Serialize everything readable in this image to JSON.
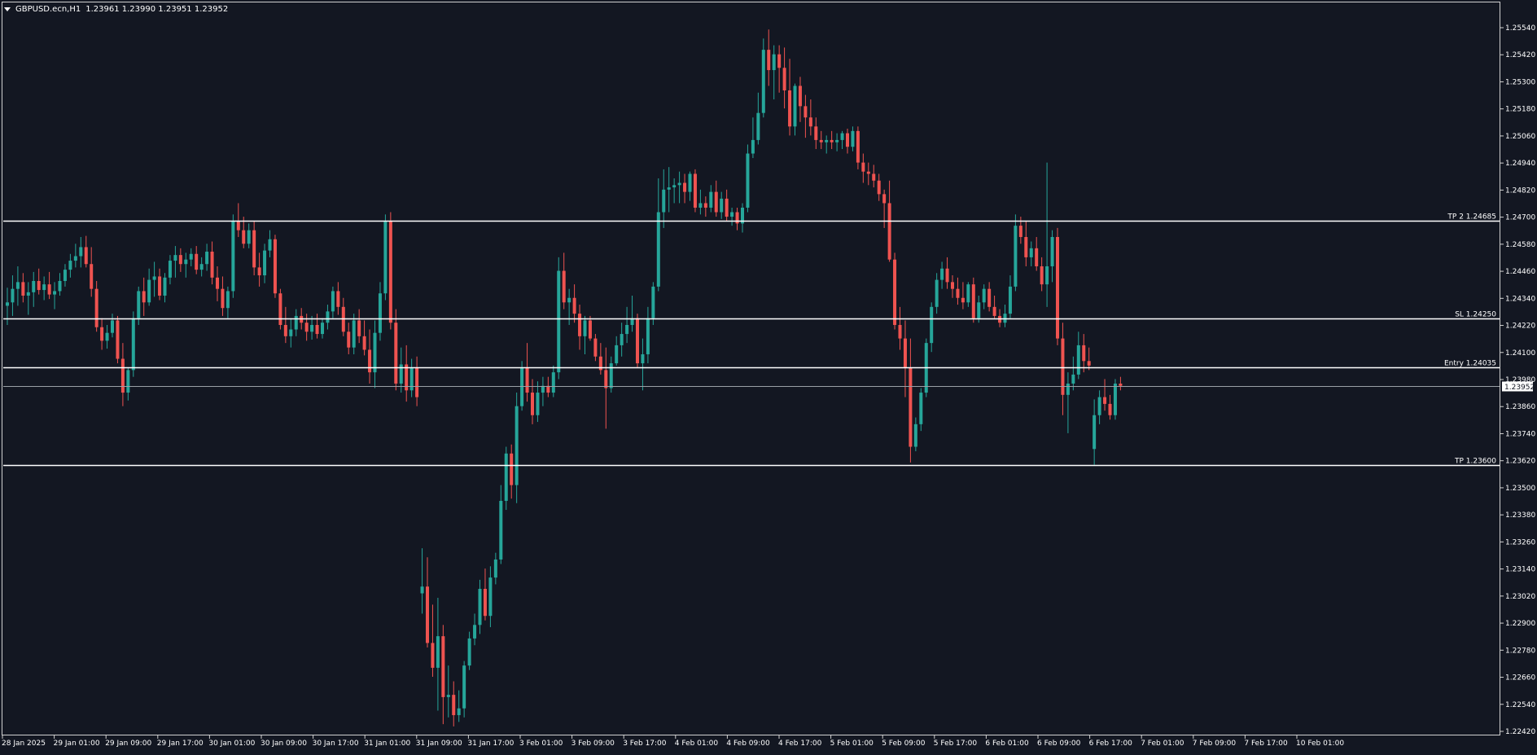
{
  "header": {
    "symbol": "GBPUSD.ecn,H1",
    "ohlc": "1.23961 1.23990 1.23951 1.23952",
    "menu_icon": "triangle-down-icon"
  },
  "colors": {
    "background": "#131722",
    "bull": "#26a69a",
    "bear": "#ef5350",
    "wick_bull": "#26a69a",
    "wick_bear": "#ef5350",
    "level_line": "#ffffff",
    "axis_text": "#ffffff",
    "border": "#d0d0d0",
    "current_price_line": "#9aa0a6"
  },
  "price_axis": {
    "labels": [
      "1.25540",
      "1.25420",
      "1.25300",
      "1.25180",
      "1.25060",
      "1.24940",
      "1.24820",
      "1.24700",
      "1.24580",
      "1.24460",
      "1.24340",
      "1.24220",
      "1.24100",
      "1.23980",
      "1.23860",
      "1.23740",
      "1.23620",
      "1.23500",
      "1.23380",
      "1.23260",
      "1.23140",
      "1.23020",
      "1.22900",
      "1.22780",
      "1.22660",
      "1.22540",
      "1.22420"
    ],
    "current_price_label": "1.23952"
  },
  "time_axis": {
    "labels": [
      "28 Jan 2025",
      "29 Jan 01:00",
      "29 Jan 09:00",
      "29 Jan 17:00",
      "30 Jan 01:00",
      "30 Jan 09:00",
      "30 Jan 17:00",
      "31 Jan 01:00",
      "31 Jan 09:00",
      "31 Jan 17:00",
      "3 Feb 01:00",
      "3 Feb 09:00",
      "3 Feb 17:00",
      "4 Feb 01:00",
      "4 Feb 09:00",
      "4 Feb 17:00",
      "5 Feb 01:00",
      "5 Feb 09:00",
      "5 Feb 17:00",
      "6 Feb 01:00",
      "6 Feb 09:00",
      "6 Feb 17:00",
      "7 Feb 01:00",
      "7 Feb 09:00",
      "7 Feb 17:00",
      "10 Feb 01:00"
    ]
  },
  "levels": [
    {
      "label": "TP 2 1.24685",
      "price": 1.24685
    },
    {
      "label": "SL 1.24250",
      "price": 1.2425
    },
    {
      "label": "Entry 1.24035",
      "price": 1.24035
    },
    {
      "label": "TP 1.23600",
      "price": 1.236
    }
  ],
  "chart_data": {
    "type": "candlestick",
    "symbol": "GBPUSD.ecn",
    "timeframe": "H1",
    "ylim": [
      1.2239,
      1.2559
    ],
    "current_price": 1.23952,
    "candles_ohlc": [
      [
        1.24307,
        1.24387,
        1.24222,
        1.24322
      ],
      [
        1.24322,
        1.24442,
        1.24262,
        1.24382
      ],
      [
        1.24382,
        1.24482,
        1.24307,
        1.24412
      ],
      [
        1.24412,
        1.24452,
        1.24322,
        1.24352
      ],
      [
        1.24352,
        1.24412,
        1.24267,
        1.24367
      ],
      [
        1.24367,
        1.24457,
        1.24302,
        1.24417
      ],
      [
        1.24417,
        1.24472,
        1.24357,
        1.24377
      ],
      [
        1.24377,
        1.24437,
        1.24332,
        1.24402
      ],
      [
        1.24402,
        1.24457,
        1.24337,
        1.24357
      ],
      [
        1.24357,
        1.24412,
        1.24292,
        1.24372
      ],
      [
        1.24372,
        1.24452,
        1.24352,
        1.24417
      ],
      [
        1.24417,
        1.24492,
        1.24392,
        1.24467
      ],
      [
        1.24467,
        1.24537,
        1.24432,
        1.24507
      ],
      [
        1.24507,
        1.24582,
        1.24477,
        1.24527
      ],
      [
        1.24527,
        1.24612,
        1.24477,
        1.24567
      ],
      [
        1.24567,
        1.24617,
        1.24477,
        1.24492
      ],
      [
        1.24492,
        1.24567,
        1.24347,
        1.24382
      ],
      [
        1.24382,
        1.24417,
        1.24192,
        1.24212
      ],
      [
        1.24212,
        1.24252,
        1.24112,
        1.24152
      ],
      [
        1.24152,
        1.24222,
        1.24117,
        1.24187
      ],
      [
        1.24187,
        1.24272,
        1.24167,
        1.24242
      ],
      [
        1.24242,
        1.24262,
        1.24052,
        1.24072
      ],
      [
        1.24072,
        1.24142,
        1.23862,
        1.23922
      ],
      [
        1.23922,
        1.24032,
        1.23887,
        1.24022
      ],
      [
        1.24022,
        1.24282,
        1.23992,
        1.24252
      ],
      [
        1.24252,
        1.24392,
        1.24222,
        1.24372
      ],
      [
        1.24372,
        1.24432,
        1.24262,
        1.24322
      ],
      [
        1.24322,
        1.24472,
        1.24307,
        1.24422
      ],
      [
        1.24422,
        1.24502,
        1.24347,
        1.24437
      ],
      [
        1.24437,
        1.24472,
        1.24332,
        1.24352
      ],
      [
        1.24352,
        1.24452,
        1.24322,
        1.24432
      ],
      [
        1.24432,
        1.24532,
        1.24402,
        1.24507
      ],
      [
        1.24507,
        1.24572,
        1.24432,
        1.24532
      ],
      [
        1.24532,
        1.24562,
        1.24457,
        1.24492
      ],
      [
        1.24492,
        1.24542,
        1.24432,
        1.24512
      ],
      [
        1.24512,
        1.24562,
        1.24482,
        1.24537
      ],
      [
        1.24537,
        1.24572,
        1.24447,
        1.24467
      ],
      [
        1.24467,
        1.24522,
        1.24437,
        1.24492
      ],
      [
        1.24492,
        1.24582,
        1.24462,
        1.24547
      ],
      [
        1.24547,
        1.24592,
        1.24402,
        1.24432
      ],
      [
        1.24432,
        1.24482,
        1.24327,
        1.24382
      ],
      [
        1.24382,
        1.24437,
        1.24262,
        1.24297
      ],
      [
        1.24297,
        1.24392,
        1.24252,
        1.24372
      ],
      [
        1.24372,
        1.24712,
        1.24342,
        1.24682
      ],
      [
        1.24682,
        1.24762,
        1.24612,
        1.24642
      ],
      [
        1.24642,
        1.24702,
        1.24562,
        1.24582
      ],
      [
        1.24582,
        1.24672,
        1.24562,
        1.24642
      ],
      [
        1.24642,
        1.24682,
        1.24442,
        1.24477
      ],
      [
        1.24477,
        1.24542,
        1.24392,
        1.24442
      ],
      [
        1.24442,
        1.24582,
        1.24407,
        1.24552
      ],
      [
        1.24552,
        1.24642,
        1.24522,
        1.24602
      ],
      [
        1.24602,
        1.24622,
        1.24342,
        1.24362
      ],
      [
        1.24362,
        1.24382,
        1.24202,
        1.24222
      ],
      [
        1.24222,
        1.24302,
        1.24142,
        1.24172
      ],
      [
        1.24172,
        1.24252,
        1.24122,
        1.24202
      ],
      [
        1.24202,
        1.24292,
        1.24172,
        1.24262
      ],
      [
        1.24262,
        1.24297,
        1.24202,
        1.24232
      ],
      [
        1.24232,
        1.24272,
        1.24152,
        1.24192
      ],
      [
        1.24192,
        1.24262,
        1.24157,
        1.24222
      ],
      [
        1.24222,
        1.24272,
        1.24162,
        1.24182
      ],
      [
        1.24182,
        1.24252,
        1.24162,
        1.24232
      ],
      [
        1.24232,
        1.24312,
        1.24202,
        1.24282
      ],
      [
        1.24282,
        1.24392,
        1.24252,
        1.24372
      ],
      [
        1.24372,
        1.24412,
        1.24267,
        1.24302
      ],
      [
        1.24302,
        1.24342,
        1.24172,
        1.24192
      ],
      [
        1.24192,
        1.24232,
        1.24092,
        1.24122
      ],
      [
        1.24122,
        1.24272,
        1.24092,
        1.24242
      ],
      [
        1.24242,
        1.24292,
        1.24142,
        1.24172
      ],
      [
        1.24172,
        1.24242,
        1.24087,
        1.24112
      ],
      [
        1.24112,
        1.24202,
        1.23962,
        1.24012
      ],
      [
        1.24012,
        1.24242,
        1.23942,
        1.24187
      ],
      [
        1.24187,
        1.24412,
        1.24152,
        1.24362
      ],
      [
        1.24362,
        1.24712,
        1.24332,
        1.24682
      ],
      [
        1.24682,
        1.24722,
        1.24202,
        1.24232
      ],
      [
        1.24232,
        1.24292,
        1.23932,
        1.23962
      ],
      [
        1.23962,
        1.24122,
        1.23922,
        1.24047
      ],
      [
        1.24047,
        1.24132,
        1.23882,
        1.23932
      ],
      [
        1.23932,
        1.24072,
        1.23902,
        1.24032
      ],
      [
        1.24032,
        1.24082,
        1.23862,
        1.23902
      ],
      [
        1.23032,
        1.23232,
        1.22942,
        1.23062
      ],
      [
        1.23062,
        1.23192,
        1.22792,
        1.22812
      ],
      [
        1.22812,
        1.22982,
        1.22662,
        1.22702
      ],
      [
        1.22702,
        1.23012,
        1.22512,
        1.22842
      ],
      [
        1.22842,
        1.22892,
        1.22452,
        1.22572
      ],
      [
        1.22572,
        1.22712,
        1.22482,
        1.22582
      ],
      [
        1.22582,
        1.22642,
        1.22442,
        1.22492
      ],
      [
        1.22492,
        1.22602,
        1.22462,
        1.22522
      ],
      [
        1.22522,
        1.22732,
        1.22482,
        1.22712
      ],
      [
        1.22712,
        1.22862,
        1.22692,
        1.22832
      ],
      [
        1.22832,
        1.22942,
        1.22802,
        1.22892
      ],
      [
        1.22892,
        1.23092,
        1.22852,
        1.23052
      ],
      [
        1.23052,
        1.23142,
        1.22912,
        1.22932
      ],
      [
        1.22932,
        1.23152,
        1.22882,
        1.23102
      ],
      [
        1.23102,
        1.23212,
        1.23072,
        1.23182
      ],
      [
        1.23182,
        1.23512,
        1.23162,
        1.23442
      ],
      [
        1.23442,
        1.23682,
        1.23402,
        1.23652
      ],
      [
        1.23652,
        1.23692,
        1.23452,
        1.23512
      ],
      [
        1.23512,
        1.23922,
        1.23432,
        1.23862
      ],
      [
        1.23862,
        1.24062,
        1.23842,
        1.24032
      ],
      [
        1.24032,
        1.24142,
        1.23882,
        1.23922
      ],
      [
        1.23922,
        1.23982,
        1.23782,
        1.23822
      ],
      [
        1.23822,
        1.23972,
        1.23792,
        1.23922
      ],
      [
        1.23922,
        1.23992,
        1.23862,
        1.23952
      ],
      [
        1.23952,
        1.23992,
        1.23902,
        1.23922
      ],
      [
        1.23922,
        1.24042,
        1.23902,
        1.24012
      ],
      [
        1.24012,
        1.24522,
        1.23982,
        1.24462
      ],
      [
        1.24462,
        1.24542,
        1.24292,
        1.24322
      ],
      [
        1.24322,
        1.24382,
        1.24222,
        1.24342
      ],
      [
        1.24342,
        1.24402,
        1.24232,
        1.24272
      ],
      [
        1.24272,
        1.24312,
        1.24112,
        1.24172
      ],
      [
        1.24172,
        1.24262,
        1.24092,
        1.24242
      ],
      [
        1.24242,
        1.24262,
        1.24152,
        1.24162
      ],
      [
        1.24162,
        1.24182,
        1.24062,
        1.24082
      ],
      [
        1.24082,
        1.24142,
        1.24002,
        1.24022
      ],
      [
        1.24022,
        1.24122,
        1.23762,
        1.23942
      ],
      [
        1.23942,
        1.24082,
        1.23922,
        1.24052
      ],
      [
        1.24052,
        1.24172,
        1.24042,
        1.24132
      ],
      [
        1.24132,
        1.24232,
        1.24082,
        1.24182
      ],
      [
        1.24182,
        1.24302,
        1.24142,
        1.24222
      ],
      [
        1.24222,
        1.24352,
        1.24192,
        1.24252
      ],
      [
        1.24252,
        1.24272,
        1.24032,
        1.24052
      ],
      [
        1.24052,
        1.24162,
        1.23932,
        1.24092
      ],
      [
        1.24092,
        1.24302,
        1.24052,
        1.24252
      ],
      [
        1.24252,
        1.24412,
        1.24222,
        1.24392
      ],
      [
        1.24392,
        1.24872,
        1.24372,
        1.24722
      ],
      [
        1.24722,
        1.24912,
        1.24652,
        1.24822
      ],
      [
        1.24822,
        1.24922,
        1.24722,
        1.24832
      ],
      [
        1.24832,
        1.24872,
        1.24762,
        1.24842
      ],
      [
        1.24842,
        1.24902,
        1.24762,
        1.24852
      ],
      [
        1.24852,
        1.24892,
        1.24762,
        1.24812
      ],
      [
        1.24812,
        1.24902,
        1.24772,
        1.24892
      ],
      [
        1.24892,
        1.24912,
        1.24722,
        1.24742
      ],
      [
        1.24742,
        1.24822,
        1.24712,
        1.24762
      ],
      [
        1.24762,
        1.24792,
        1.24702,
        1.24742
      ],
      [
        1.24742,
        1.24842,
        1.24722,
        1.24812
      ],
      [
        1.24812,
        1.24862,
        1.24702,
        1.24722
      ],
      [
        1.24722,
        1.24812,
        1.24692,
        1.24782
      ],
      [
        1.24782,
        1.24822,
        1.24682,
        1.24702
      ],
      [
        1.24702,
        1.24742,
        1.24662,
        1.24722
      ],
      [
        1.24722,
        1.24742,
        1.24642,
        1.24672
      ],
      [
        1.24672,
        1.24762,
        1.24632,
        1.24742
      ],
      [
        1.24742,
        1.25022,
        1.24722,
        1.24982
      ],
      [
        1.24982,
        1.25142,
        1.24962,
        1.25042
      ],
      [
        1.25042,
        1.25252,
        1.25022,
        1.25162
      ],
      [
        1.25162,
        1.25492,
        1.25142,
        1.25442
      ],
      [
        1.25442,
        1.25532,
        1.25282,
        1.25352
      ],
      [
        1.25352,
        1.25462,
        1.25222,
        1.25422
      ],
      [
        1.25422,
        1.25462,
        1.25252,
        1.25362
      ],
      [
        1.25362,
        1.25452,
        1.25182,
        1.25262
      ],
      [
        1.25262,
        1.25402,
        1.25062,
        1.25102
      ],
      [
        1.25102,
        1.25292,
        1.25062,
        1.25282
      ],
      [
        1.25282,
        1.25322,
        1.25122,
        1.25192
      ],
      [
        1.25192,
        1.25242,
        1.25052,
        1.25142
      ],
      [
        1.25142,
        1.25222,
        1.25062,
        1.25102
      ],
      [
        1.25102,
        1.25142,
        1.25002,
        1.25042
      ],
      [
        1.25042,
        1.25082,
        1.25002,
        1.25032
      ],
      [
        1.25032,
        1.25062,
        1.24982,
        1.25042
      ],
      [
        1.25042,
        1.25082,
        1.25002,
        1.25032
      ],
      [
        1.25032,
        1.25072,
        1.24992,
        1.25042
      ],
      [
        1.25042,
        1.25082,
        1.25002,
        1.25072
      ],
      [
        1.25072,
        1.25092,
        1.24982,
        1.25012
      ],
      [
        1.25012,
        1.25102,
        1.24992,
        1.25082
      ],
      [
        1.25082,
        1.25102,
        1.24912,
        1.24942
      ],
      [
        1.24942,
        1.24982,
        1.24852,
        1.24902
      ],
      [
        1.24902,
        1.24942,
        1.24842,
        1.24892
      ],
      [
        1.24892,
        1.24932,
        1.24832,
        1.24862
      ],
      [
        1.24862,
        1.24892,
        1.24772,
        1.24802
      ],
      [
        1.24802,
        1.24822,
        1.24652,
        1.24762
      ],
      [
        1.24762,
        1.24862,
        1.24502,
        1.24512
      ],
      [
        1.24512,
        1.24542,
        1.24202,
        1.24222
      ],
      [
        1.24222,
        1.24302,
        1.24112,
        1.24162
      ],
      [
        1.24162,
        1.24242,
        1.23902,
        1.24032
      ],
      [
        1.24032,
        1.24162,
        1.23612,
        1.23682
      ],
      [
        1.23682,
        1.23812,
        1.23662,
        1.23782
      ],
      [
        1.23782,
        1.23942,
        1.23752,
        1.23922
      ],
      [
        1.23922,
        1.24162,
        1.23902,
        1.24142
      ],
      [
        1.24142,
        1.24322,
        1.24102,
        1.24302
      ],
      [
        1.24302,
        1.24452,
        1.24272,
        1.24422
      ],
      [
        1.24422,
        1.24502,
        1.24382,
        1.24472
      ],
      [
        1.24472,
        1.24522,
        1.24382,
        1.24412
      ],
      [
        1.24412,
        1.24442,
        1.24342,
        1.24382
      ],
      [
        1.24382,
        1.24432,
        1.24312,
        1.24342
      ],
      [
        1.24342,
        1.24412,
        1.24292,
        1.24322
      ],
      [
        1.24322,
        1.24412,
        1.24302,
        1.24402
      ],
      [
        1.24402,
        1.24432,
        1.24232,
        1.24252
      ],
      [
        1.24252,
        1.24352,
        1.24232,
        1.24322
      ],
      [
        1.24322,
        1.24402,
        1.24292,
        1.24382
      ],
      [
        1.24382,
        1.24412,
        1.24282,
        1.24302
      ],
      [
        1.24302,
        1.24352,
        1.24252,
        1.24262
      ],
      [
        1.24262,
        1.24292,
        1.24212,
        1.24232
      ],
      [
        1.24232,
        1.24312,
        1.24212,
        1.24272
      ],
      [
        1.24272,
        1.24442,
        1.24252,
        1.24392
      ],
      [
        1.24392,
        1.24712,
        1.24372,
        1.24662
      ],
      [
        1.24662,
        1.24702,
        1.24582,
        1.24612
      ],
      [
        1.24612,
        1.24682,
        1.24482,
        1.24522
      ],
      [
        1.24522,
        1.24592,
        1.24482,
        1.24562
      ],
      [
        1.24562,
        1.24612,
        1.24462,
        1.24482
      ],
      [
        1.24482,
        1.24522,
        1.24372,
        1.24402
      ],
      [
        1.24402,
        1.24942,
        1.24302,
        1.24482
      ],
      [
        1.24482,
        1.24642,
        1.24412,
        1.24612
      ],
      [
        1.24612,
        1.24652,
        1.24132,
        1.24162
      ],
      [
        1.24162,
        1.24232,
        1.23822,
        1.23912
      ],
      [
        1.23912,
        1.24012,
        1.23742,
        1.23962
      ],
      [
        1.23962,
        1.24082,
        1.23932,
        1.24002
      ],
      [
        1.24002,
        1.24192,
        1.23982,
        1.24132
      ],
      [
        1.24132,
        1.24182,
        1.24012,
        1.24062
      ],
      [
        1.24062,
        1.24122,
        1.24022,
        1.24042
      ],
      [
        1.23672,
        1.23892,
        1.23602,
        1.23822
      ],
      [
        1.23822,
        1.23932,
        1.23782,
        1.23902
      ],
      [
        1.23902,
        1.23982,
        1.23842,
        1.23872
      ],
      [
        1.23872,
        1.23912,
        1.23802,
        1.23822
      ],
      [
        1.23822,
        1.23982,
        1.23802,
        1.23962
      ],
      [
        1.23962,
        1.23992,
        1.23932,
        1.23952
      ]
    ]
  }
}
